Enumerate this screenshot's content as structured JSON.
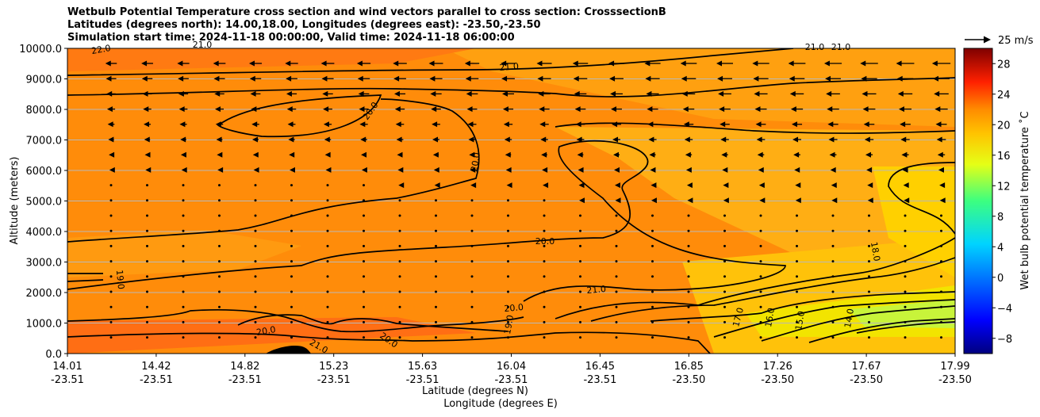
{
  "chart_data": {
    "type": "contour",
    "title_lines": [
      "Wetbulb Potential Temperature cross section and wind vectors parallel to cross section: CrosssectionB",
      "Latitudes (degrees north): 14.00,18.00, Longitudes (degrees east): -23.50,-23.50",
      "Simulation start time: 2024-11-18 00:00:00, Valid time: 2024-11-18 06:00:00"
    ],
    "xlabel": "Latitude (degrees N)",
    "xlabel2": "Longitude (degrees E)",
    "ylabel": "Altitude (meters)",
    "colorbar_label": "Wet bulb potential temperature ˚C",
    "quiver_key_label": "25 m/s",
    "x_ticks": [
      {
        "lat": "14.01",
        "lon": "-23.51"
      },
      {
        "lat": "14.42",
        "lon": "-23.51"
      },
      {
        "lat": "14.82",
        "lon": "-23.51"
      },
      {
        "lat": "15.23",
        "lon": "-23.51"
      },
      {
        "lat": "15.63",
        "lon": "-23.51"
      },
      {
        "lat": "16.04",
        "lon": "-23.51"
      },
      {
        "lat": "16.45",
        "lon": "-23.51"
      },
      {
        "lat": "16.85",
        "lon": "-23.50"
      },
      {
        "lat": "17.26",
        "lon": "-23.50"
      },
      {
        "lat": "17.67",
        "lon": "-23.50"
      },
      {
        "lat": "17.99",
        "lon": "-23.50"
      }
    ],
    "y_ticks": [
      "0.0",
      "1000.0",
      "2000.0",
      "3000.0",
      "4000.0",
      "5000.0",
      "6000.0",
      "7000.0",
      "8000.0",
      "9000.0",
      "10000.0"
    ],
    "ylim": [
      0,
      10000
    ],
    "colorbar_ticks": [
      "−8",
      "−4",
      "0",
      "4",
      "8",
      "12",
      "16",
      "20",
      "24",
      "28"
    ],
    "colorbar_range": [
      -10,
      30
    ],
    "contour_labels": [
      "22.0",
      "21.0",
      "20.0",
      "20.0",
      "19.0",
      "21.0",
      "20.0",
      "21.0",
      "20.0",
      "20.0",
      "19.0",
      "20.0",
      "21.0",
      "17.0",
      "16.0",
      "15.0",
      "14.0",
      "18.0",
      "21.0",
      "21.0"
    ],
    "grid": "horizontal",
    "colormap": "jet"
  }
}
